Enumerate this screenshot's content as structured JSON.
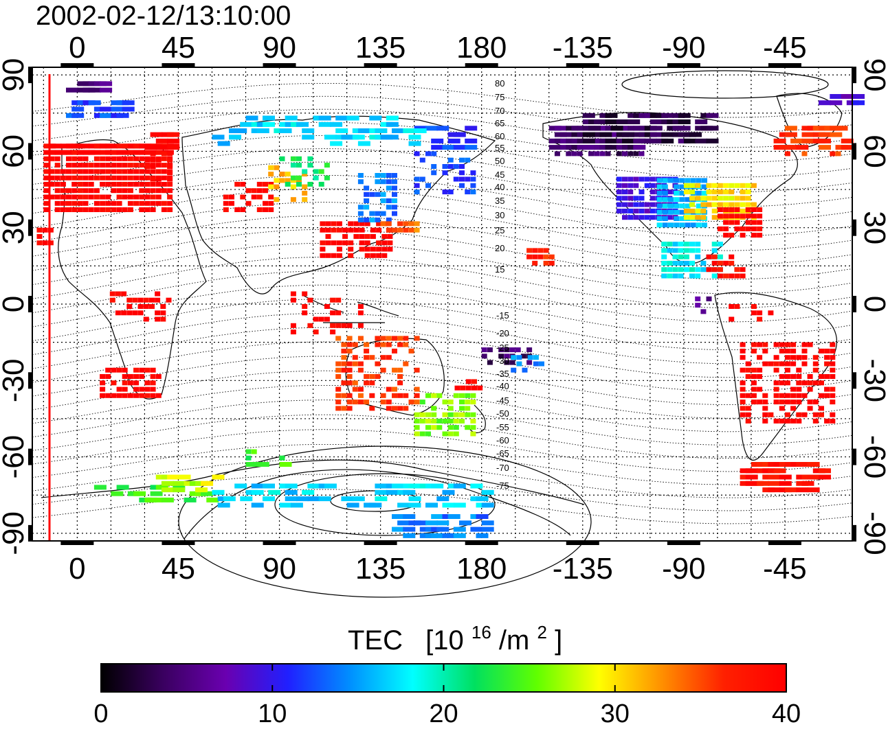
{
  "title": "2002-02-12/13:10:00",
  "map": {
    "lon_ticks": [
      "0",
      "45",
      "90",
      "135",
      "180",
      "-135",
      "-90",
      "-45"
    ],
    "lat_ticks": [
      "90",
      "60",
      "30",
      "0",
      "-30",
      "-60",
      "-90"
    ],
    "lon_range": [
      -20,
      345
    ],
    "lat_range": [
      -93,
      93
    ],
    "contour_labels_north": [
      "80",
      "75",
      "70",
      "65",
      "60",
      "55",
      "50",
      "45",
      "40",
      "35",
      "30",
      "25",
      "20",
      "15"
    ],
    "contour_labels_south": [
      "-15",
      "-20",
      "-25",
      "-30",
      "-35",
      "-40",
      "-45",
      "-50",
      "-55",
      "-60",
      "-65",
      "-70",
      "-75"
    ]
  },
  "colorbar": {
    "label": "TEC",
    "unit_base": "[10",
    "unit_exp": "16",
    "unit_mid": "/m",
    "unit_exp2": "2",
    "unit_end": "]",
    "ticks": [
      "0",
      "10",
      "20",
      "30",
      "40"
    ],
    "range": [
      0,
      40
    ],
    "colors": [
      "#000000",
      "#3a0060",
      "#6a00b0",
      "#2020ff",
      "#0090ff",
      "#00ffff",
      "#00e060",
      "#60ff00",
      "#ffff00",
      "#ff9000",
      "#ff2000",
      "#ff0000"
    ]
  }
}
